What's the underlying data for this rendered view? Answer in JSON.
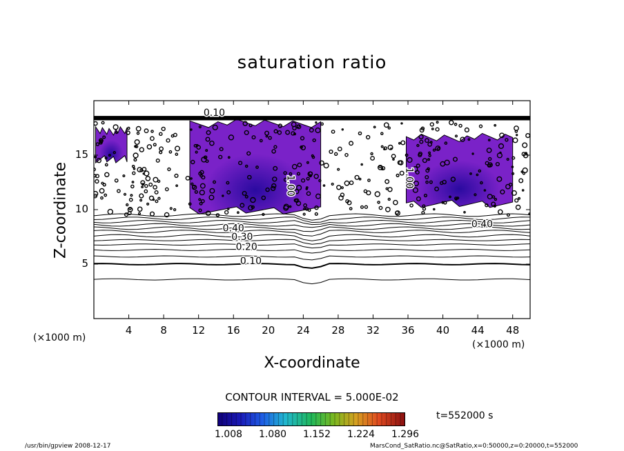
{
  "chart_data": {
    "type": "heatmap",
    "title": "saturation ratio",
    "xlabel": "X-coordinate",
    "ylabel": "Z-coordinate",
    "x_unit": "(×1000 m)",
    "xlim": [
      0,
      50
    ],
    "ylim": [
      0,
      20
    ],
    "x_ticks": [
      "4",
      "8",
      "12",
      "16",
      "20",
      "24",
      "28",
      "32",
      "36",
      "40",
      "44",
      "48"
    ],
    "y_ticks": [
      "5",
      "10",
      "15"
    ],
    "contour_interval_text": "CONTOUR INTERVAL = 5.000E-02",
    "contour_labels": [
      {
        "text": "0.10",
        "x": 18.0,
        "y": 5.0
      },
      {
        "text": "0.20",
        "x": 17.5,
        "y": 6.3
      },
      {
        "text": "0.30",
        "x": 17.0,
        "y": 7.2
      },
      {
        "text": "0.40",
        "x": 16.0,
        "y": 8.0
      },
      {
        "text": "0.40",
        "x": 44.5,
        "y": 8.4
      },
      {
        "text": "1.00",
        "x": 22.2,
        "y": 12.2
      },
      {
        "text": "1.00",
        "x": 35.8,
        "y": 12.9
      },
      {
        "text": "0.10",
        "x": 13.8,
        "y": 18.6
      }
    ],
    "shaded_regions": [
      {
        "x0": 0.2,
        "x1": 3.8,
        "y_bottom": 14.3,
        "y_top": 17.6
      },
      {
        "x0": 11.0,
        "x1": 26.0,
        "y_bottom": 9.6,
        "y_top": 18.3
      },
      {
        "x0": 35.8,
        "x1": 48.0,
        "y_bottom": 10.2,
        "y_top": 17.0
      }
    ],
    "colorbar": {
      "min": 1.008,
      "max": 1.296,
      "tick_labels": [
        "1.008",
        "1.080",
        "1.152",
        "1.224",
        "1.296"
      ],
      "colors": [
        "#10007a",
        "#1a1ab8",
        "#1f5fe6",
        "#20b7d0",
        "#20b85a",
        "#7ab820",
        "#d6a020",
        "#e04a20",
        "#8a1010"
      ]
    },
    "region_color": "#7a22c8",
    "region_color_dark": "#2a0aa0",
    "time_label": "t=552000 s"
  },
  "footer": {
    "left": "/usr/bin/gpview  2008-12-17",
    "right": "MarsCond_SatRatio.nc@SatRatio,x=0:50000,z=0:20000,t=552000"
  }
}
